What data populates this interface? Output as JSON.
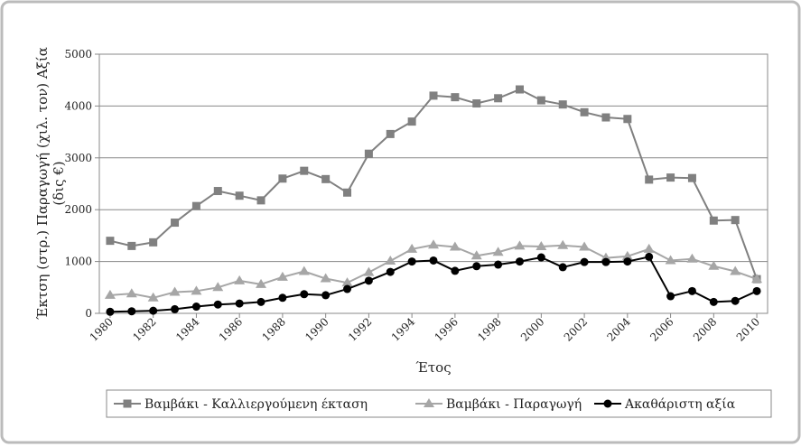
{
  "chart_data": {
    "type": "line",
    "xlabel": "Έτος",
    "ylabel": [
      "Έκτση (στρ.) Παραγωγή (χιλ. τον) Αξία",
      "(δις €)"
    ],
    "x": [
      1980,
      1981,
      1982,
      1983,
      1984,
      1985,
      1986,
      1987,
      1988,
      1989,
      1990,
      1991,
      1992,
      1993,
      1994,
      1995,
      1996,
      1997,
      1998,
      1999,
      2000,
      2001,
      2002,
      2003,
      2004,
      2005,
      2006,
      2007,
      2008,
      2009,
      2010
    ],
    "xlim": [
      1979.5,
      2010.5
    ],
    "xticks": [
      1980,
      1982,
      1984,
      1986,
      1988,
      1990,
      1992,
      1994,
      1996,
      1998,
      2000,
      2002,
      2004,
      2006,
      2008,
      2010
    ],
    "ylim": [
      0,
      5000
    ],
    "yticks": [
      0,
      1000,
      2000,
      3000,
      4000,
      5000
    ],
    "grid": true,
    "legend": "bottom",
    "series": [
      {
        "name": "Βαμβάκι - Καλλιεργούμενη έκταση",
        "color": "#808080",
        "marker": "square",
        "values": [
          1400,
          1300,
          1370,
          1750,
          2070,
          2360,
          2270,
          2180,
          2600,
          2750,
          2590,
          2330,
          3080,
          3460,
          3700,
          4200,
          4170,
          4050,
          4150,
          4320,
          4110,
          4030,
          3880,
          3780,
          3750,
          2580,
          2620,
          2610,
          1790,
          1800,
          660
        ]
      },
      {
        "name": "Βαμβάκι - Παραγωγή",
        "color": "#a6a6a6",
        "marker": "triangle",
        "values": [
          350,
          380,
          300,
          410,
          430,
          500,
          630,
          560,
          700,
          810,
          670,
          590,
          790,
          1010,
          1240,
          1320,
          1280,
          1110,
          1180,
          1300,
          1290,
          1310,
          1280,
          1070,
          1100,
          1240,
          1020,
          1050,
          910,
          810,
          660
        ]
      },
      {
        "name": "Ακαθάριστη αξία",
        "color": "#000000",
        "marker": "circle",
        "values": [
          30,
          40,
          50,
          80,
          130,
          170,
          190,
          220,
          300,
          370,
          350,
          470,
          630,
          800,
          1000,
          1020,
          820,
          910,
          940,
          1000,
          1080,
          890,
          990,
          990,
          1000,
          1090,
          330,
          430,
          220,
          240,
          430
        ]
      }
    ]
  }
}
